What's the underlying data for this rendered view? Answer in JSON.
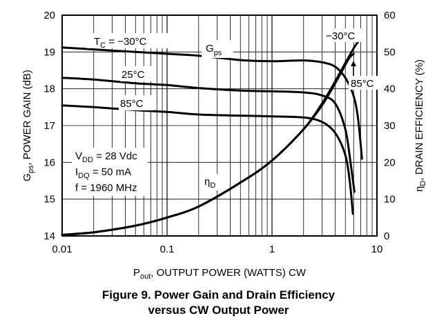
{
  "chart_data": {
    "type": "line",
    "title": "",
    "xlabel": "P",
    "xlabel_sub": "out",
    "xlabel_rest": ", OUTPUT POWER (WATTS) CW",
    "x_scale": "log",
    "xlim": [
      0.01,
      10
    ],
    "x_ticks": [
      "0.01",
      "0.1",
      "1",
      "10"
    ],
    "ylabel_left_main": "G",
    "ylabel_left_sub": "ps",
    "ylabel_left_rest": ", POWER GAIN (dB)",
    "ylim_left": [
      14,
      20
    ],
    "y_ticks_left": [
      "14",
      "15",
      "16",
      "17",
      "18",
      "19",
      "20"
    ],
    "ylabel_right_main": "η",
    "ylabel_right_sub": "D",
    "ylabel_right_rest": ", DRAIN EFFICIENCY (%)",
    "ylim_right": [
      0,
      60
    ],
    "y_ticks_right": [
      "0",
      "10",
      "20",
      "30",
      "40",
      "50",
      "60"
    ],
    "grid": true,
    "series": [
      {
        "axis": "left",
        "x": [
          0.01,
          0.02,
          0.05,
          0.1,
          0.2,
          0.5,
          1,
          2,
          3,
          4,
          5,
          6,
          6.6,
          7.2
        ],
        "y": [
          19.12,
          19.07,
          19.0,
          18.95,
          18.9,
          18.78,
          18.75,
          18.77,
          18.72,
          18.6,
          18.3,
          17.8,
          17.2,
          16.1
        ]
      },
      {
        "axis": "left",
        "x": [
          0.01,
          0.02,
          0.05,
          0.1,
          0.2,
          0.5,
          1,
          2,
          3,
          4,
          5,
          5.6,
          6.1
        ],
        "y": [
          18.3,
          18.25,
          18.15,
          18.1,
          18.02,
          17.95,
          17.93,
          17.9,
          17.82,
          17.6,
          16.9,
          16.0,
          15.2
        ]
      },
      {
        "axis": "left",
        "x": [
          0.01,
          0.02,
          0.05,
          0.1,
          0.2,
          0.5,
          1,
          2,
          3,
          4,
          5,
          5.5,
          5.9
        ],
        "y": [
          17.55,
          17.5,
          17.42,
          17.37,
          17.3,
          17.27,
          17.25,
          17.22,
          17.1,
          16.8,
          16.2,
          15.5,
          14.6
        ]
      },
      {
        "axis": "right",
        "x": [
          0.01,
          0.02,
          0.05,
          0.1,
          0.2,
          0.5,
          1,
          2,
          3,
          4,
          5,
          6,
          6.5,
          7
        ],
        "y": [
          0.3,
          1.0,
          2.8,
          5.0,
          8.0,
          14.5,
          20.5,
          29.0,
          36.0,
          42.0,
          47.0,
          51.0,
          52.5,
          53.5
        ]
      },
      {
        "axis": "right",
        "x": [
          0.01,
          0.02,
          0.05,
          0.1,
          0.2,
          0.5,
          1,
          2,
          3,
          4,
          5,
          5.5,
          6
        ],
        "y": [
          0.3,
          1.0,
          2.8,
          5.0,
          8.0,
          14.5,
          20.5,
          29.0,
          35.5,
          41.5,
          46.5,
          48.5,
          49.5
        ]
      }
    ],
    "annotations": {
      "tc_label_main": "T",
      "tc_label_sub": "C",
      "tc_label_rest": " = −30°C",
      "t25": "25°C",
      "t85": "85°C",
      "gps_main": "G",
      "gps_sub": "ps",
      "eta_main": "η",
      "eta_sub": "D",
      "eff_m30": "−30°C",
      "eff_85": "85°C",
      "cond_vdd_main": "V",
      "cond_vdd_sub": "DD",
      "cond_vdd_rest": " = 28 Vdc",
      "cond_idq_main": "I",
      "cond_idq_sub": "DQ",
      "cond_idq_rest": " = 50 mA",
      "cond_f": "f = 1960 MHz"
    }
  },
  "caption": {
    "line1": "Figure 9. Power Gain and Drain Efficiency",
    "line2": "versus CW Output Power"
  }
}
